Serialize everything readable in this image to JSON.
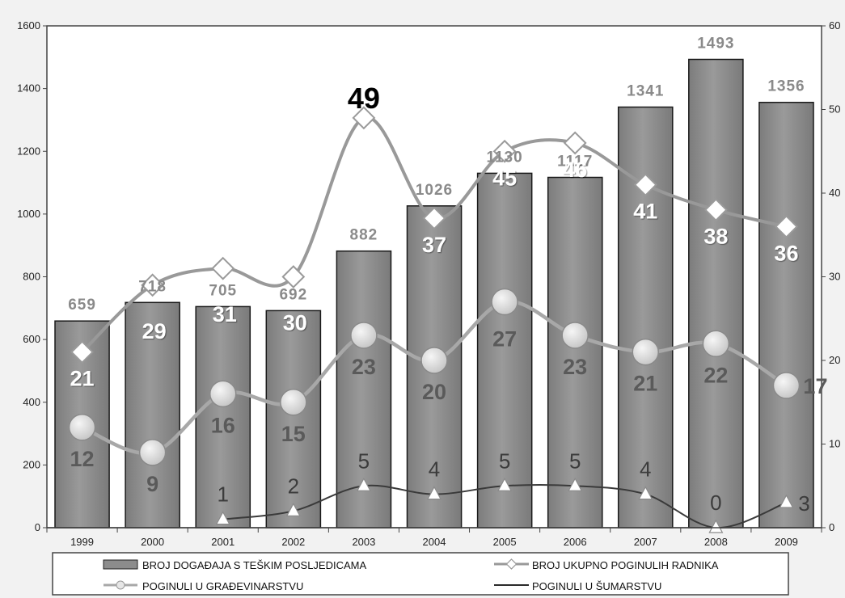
{
  "chart_data": {
    "type": "bar",
    "categories": [
      "1999",
      "2000",
      "2001",
      "2002",
      "2003",
      "2004",
      "2005",
      "2006",
      "2007",
      "2008",
      "2009"
    ],
    "y_left_ticks": [
      "0",
      "200",
      "400",
      "600",
      "800",
      "1000",
      "1200",
      "1400",
      "1600"
    ],
    "y_right_ticks": [
      "0",
      "10",
      "20",
      "30",
      "40",
      "50",
      "60"
    ],
    "ylim_left": [
      0,
      1600
    ],
    "ylim_right": [
      0,
      60
    ],
    "grid": false,
    "legend_position": "bottom",
    "series": [
      {
        "name": "BROJ DOGAĐAJA S TEŠKIM POSLJEDICAMA",
        "kind": "bar",
        "axis": "left",
        "values": [
          659,
          718,
          705,
          692,
          882,
          1026,
          1130,
          1117,
          1341,
          1493,
          1356
        ],
        "labels": [
          "659",
          "718",
          "705",
          "692",
          "882",
          "1026",
          "1130",
          "1117",
          "1341",
          "1493",
          "1356"
        ],
        "color": "#8c8c8c"
      },
      {
        "name": "BROJ UKUPNO POGINULIH RADNIKA",
        "kind": "line",
        "marker": "diamond",
        "axis": "right",
        "values": [
          21,
          29,
          31,
          30,
          49,
          37,
          45,
          46,
          41,
          38,
          36
        ],
        "labels": [
          "21",
          "29",
          "31",
          "30",
          "49",
          "37",
          "45",
          "46",
          "41",
          "38",
          "36"
        ],
        "color": "#9a9a9a"
      },
      {
        "name": "POGINULI U GRAĐEVINARSTVU",
        "kind": "line",
        "marker": "circle",
        "axis": "right",
        "values": [
          12,
          9,
          16,
          15,
          23,
          20,
          27,
          23,
          21,
          22,
          17
        ],
        "labels": [
          "12",
          "9",
          "16",
          "15",
          "23",
          "20",
          "27",
          "23",
          "21",
          "22",
          "17"
        ],
        "color": "#a6a6a6"
      },
      {
        "name": "POGINULI U ŠUMARSTVU",
        "kind": "line",
        "marker": "triangle",
        "axis": "right",
        "x": [
          "2001",
          "2002",
          "2003",
          "2004",
          "2005",
          "2006",
          "2007",
          "2008",
          "2009"
        ],
        "values": [
          1,
          2,
          5,
          4,
          5,
          5,
          4,
          0,
          3
        ],
        "labels": [
          "1",
          "2",
          "5",
          "4",
          "5",
          "5",
          "4",
          "0",
          "3"
        ],
        "color": "#3a3a3a"
      }
    ]
  }
}
